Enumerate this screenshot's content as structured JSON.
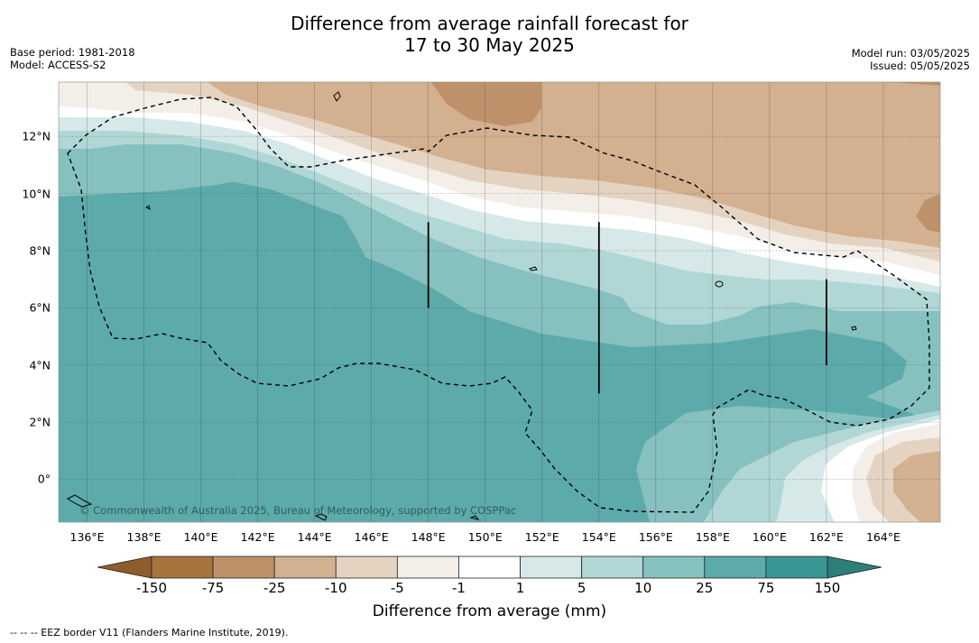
{
  "header": {
    "title_line1": "Difference from average rainfall forecast for",
    "title_line2": "17 to 30 May 2025",
    "base_period": "Base period: 1981-2018",
    "model": "Model: ACCESS-S2",
    "model_run": "Model run: 03/05/2025",
    "issued": "Issued: 05/05/2025"
  },
  "map": {
    "copyright": "© Commonwealth of Australia 2025, Bureau of Meteorology, supported by COSPPac",
    "lon_labels": [
      "136°E",
      "138°E",
      "140°E",
      "142°E",
      "144°E",
      "146°E",
      "148°E",
      "150°E",
      "152°E",
      "154°E",
      "156°E",
      "158°E",
      "160°E",
      "162°E",
      "164°E"
    ],
    "lon_values": [
      136,
      138,
      140,
      142,
      144,
      146,
      148,
      150,
      152,
      154,
      156,
      158,
      160,
      162,
      164
    ],
    "lat_labels": [
      "12°N",
      "10°N",
      "8°N",
      "6°N",
      "4°N",
      "2°N",
      "0°"
    ],
    "lat_values": [
      12,
      10,
      8,
      6,
      4,
      2,
      0
    ],
    "lon_range": [
      135,
      166
    ],
    "lat_range": [
      -1.5,
      13.9
    ],
    "boundary_lines": [
      {
        "lon": 148,
        "lat_from": 6.0,
        "lat_to": 9.0
      },
      {
        "lon": 154,
        "lat_from": 3.0,
        "lat_to": 9.0
      },
      {
        "lon": 162,
        "lat_from": 4.0,
        "lat_to": 7.0
      }
    ]
  },
  "colorbar": {
    "ticks": [
      "-150",
      "-75",
      "-25",
      "-10",
      "-5",
      "-1",
      "1",
      "5",
      "10",
      "25",
      "75",
      "150"
    ],
    "colors": [
      "#a8743e",
      "#bf916a",
      "#d3b08f",
      "#e5d3c2",
      "#f3eee8",
      "#ffffff",
      "#d6e9e8",
      "#b0d7d6",
      "#86c1bf",
      "#5daaaa",
      "#3a9894"
    ],
    "extend_low_color": "#8f5d2c",
    "extend_high_color": "#2c7f7a",
    "label": "Difference from average (mm)"
  },
  "footnote": "-- -- -- EEZ border V11 (Flanders Marine Institute, 2019)."
}
